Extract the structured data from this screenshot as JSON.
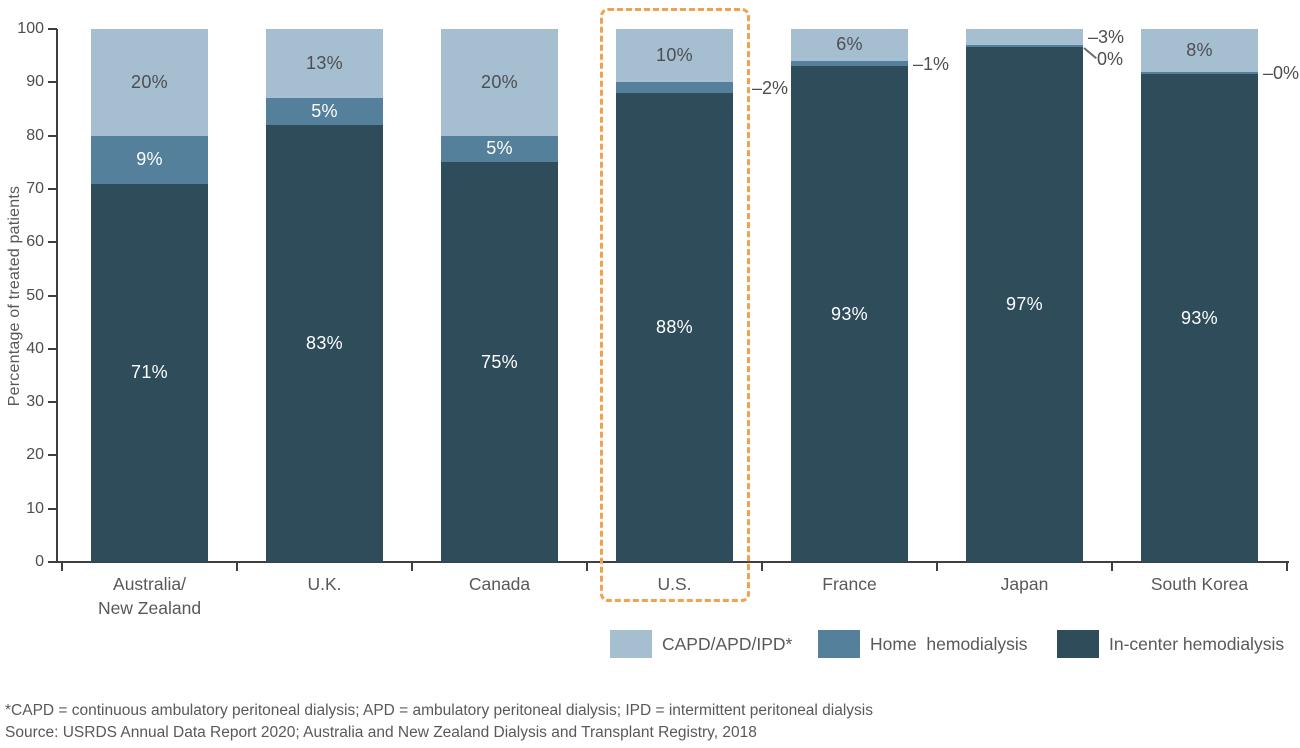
{
  "chart_data": {
    "type": "bar",
    "stacked": true,
    "ylabel": "Percentage of treated patients",
    "ylim": [
      0,
      100
    ],
    "yticks": [
      0,
      10,
      20,
      30,
      40,
      50,
      60,
      70,
      80,
      90,
      100
    ],
    "grid": false,
    "legend_position": "bottom",
    "categories": [
      "Australia/\nNew Zealand",
      "U.K.",
      "Canada",
      "U.S.",
      "France",
      "Japan",
      "South Korea"
    ],
    "highlight_category": "U.S.",
    "highlight_color": "#f2a14e",
    "outside_label_color": "#4e4e50",
    "series": [
      {
        "name": "CAPD/APD/IPD*",
        "color": "#a5bed0",
        "inside_label_color": "#4e4e50",
        "values": [
          20,
          13,
          20,
          10,
          6,
          3,
          8
        ],
        "labels": [
          "20%",
          "13%",
          "20%",
          "10%",
          "6%",
          "–3%",
          "8%"
        ],
        "label_outside": [
          false,
          false,
          false,
          false,
          false,
          true,
          false
        ],
        "leader": [
          false,
          false,
          false,
          false,
          false,
          false,
          false
        ]
      },
      {
        "name": "Home hemodialysis",
        "color": "#54809b",
        "inside_label_color": "#ffffff",
        "values": [
          9,
          5,
          5,
          2,
          1,
          0,
          0
        ],
        "labels": [
          "9%",
          "5%",
          "5%",
          "–2%",
          "–1%",
          "0%",
          "–0%"
        ],
        "label_outside": [
          false,
          false,
          false,
          true,
          true,
          true,
          true
        ],
        "leader": [
          false,
          false,
          false,
          false,
          false,
          true,
          false
        ]
      },
      {
        "name": "In-center hemodialysis",
        "color": "#2e4c5a",
        "inside_label_color": "#ffffff",
        "values": [
          71,
          83,
          75,
          88,
          93,
          97,
          93
        ],
        "labels": [
          "71%",
          "83%",
          "75%",
          "88%",
          "93%",
          "97%",
          "93%"
        ],
        "label_outside": [
          false,
          false,
          false,
          false,
          false,
          false,
          false
        ],
        "leader": [
          false,
          false,
          false,
          false,
          false,
          false,
          false
        ]
      }
    ]
  },
  "legend": {
    "items": [
      {
        "label": "CAPD/APD/IPD*",
        "color": "#a5bed0"
      },
      {
        "label": "Home  hemodialysis",
        "color": "#54809b"
      },
      {
        "label": "In-center hemodialysis",
        "color": "#2e4c5a"
      }
    ]
  },
  "footnotes": {
    "line1": "*CAPD = continuous ambulatory peritoneal dialysis; APD = ambulatory peritoneal dialysis; IPD = intermittent peritoneal dialysis",
    "line2": "Source: USRDS Annual Data Report 2020; Australia and New Zealand Dialysis and Transplant Registry, 2018"
  }
}
